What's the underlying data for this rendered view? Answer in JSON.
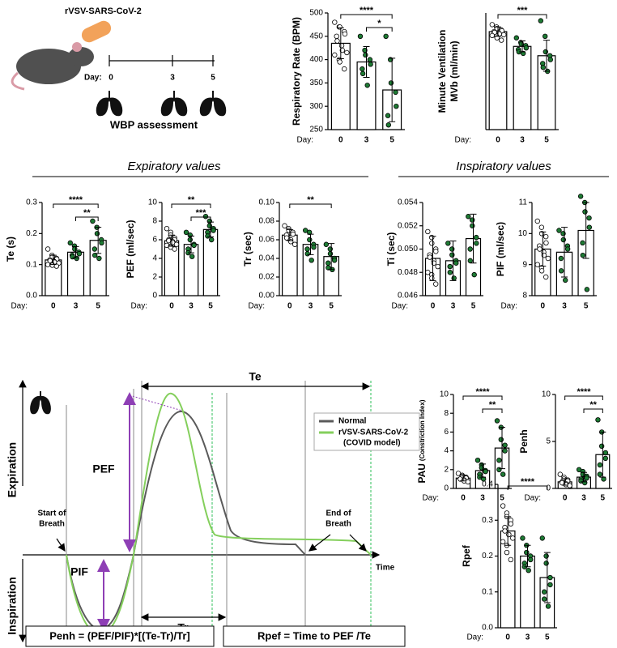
{
  "schematic": {
    "title": "rVSV-SARS-CoV-2",
    "day_label": "Day:",
    "days": [
      "0",
      "3",
      "5"
    ],
    "caption": "WBP assessment"
  },
  "sections": {
    "expiratory": "Expiratory values",
    "inspiratory": "Inspiratory values"
  },
  "waveform": {
    "te": "Te",
    "pef": "PEF",
    "pif": "PIF",
    "tr": "Tr",
    "expiration": "Expiration",
    "inspiration": "Inspiration",
    "start": [
      "Start of",
      "Breath"
    ],
    "end": [
      "End of",
      "Breath"
    ],
    "time": "Time",
    "legend": [
      {
        "name": "Normal",
        "color": "#5a5a5a"
      },
      {
        "name": "rVSV-SARS-CoV-2",
        "note": "(COVID model)",
        "color": "#84cf5c"
      }
    ],
    "formulas": [
      "Penh = (PEF/PIF)*[(Te-Tr)/Tr]",
      "Rpef = Time to PEF /Te"
    ]
  },
  "chart_data": [
    {
      "type": "bar",
      "ylabel": [
        "Respiratory Rate (BPM)"
      ],
      "xlabel": "Day:",
      "categories": [
        "0",
        "3",
        "5"
      ],
      "values": [
        435,
        395,
        335
      ],
      "errors": [
        33,
        33,
        68
      ],
      "point_colors": [
        "#ffffff",
        "#1e7b34",
        "#1e7b34"
      ],
      "points": [
        [
          480,
          470,
          470,
          460,
          455,
          450,
          440,
          430,
          420,
          415,
          410,
          400,
          395,
          380
        ],
        [
          450,
          420,
          410,
          400,
          390,
          380,
          370,
          345
        ],
        [
          450,
          400,
          350,
          330,
          300,
          280,
          260
        ]
      ],
      "ylim": [
        250,
        500
      ],
      "yticks": [
        250,
        300,
        350,
        400,
        450,
        500
      ],
      "brackets": [
        {
          "between": [
            "0",
            "5"
          ],
          "label": "****"
        },
        {
          "between": [
            "3",
            "5"
          ],
          "label": "*"
        }
      ]
    },
    {
      "type": "bar",
      "ylabel": [
        "Minute Ventilation",
        "MVb (ml/min)"
      ],
      "xlabel": "Day:",
      "categories": [
        "0",
        "3",
        "5"
      ],
      "values": [
        126,
        107,
        95
      ],
      "errors": [
        6,
        7,
        20
      ],
      "point_colors": [
        "#ffffff",
        "#1e7b34",
        "#1e7b34"
      ],
      "points": [
        [
          135,
          132,
          130,
          128,
          127,
          126,
          125,
          124,
          123,
          122,
          121,
          120,
          118,
          115
        ],
        [
          118,
          112,
          110,
          108,
          105,
          103,
          100,
          98
        ],
        [
          140,
          120,
          100,
          95,
          90,
          85,
          80,
          75
        ]
      ],
      "ylim": [
        0,
        150
      ],
      "brackets": [
        {
          "between": [
            "0",
            "5"
          ],
          "label": "***"
        }
      ]
    },
    {
      "type": "bar",
      "ylabel": [
        "Te (s)"
      ],
      "xlabel": "Day:",
      "categories": [
        "0",
        "3",
        "5"
      ],
      "values": [
        0.115,
        0.14,
        0.178
      ],
      "errors": [
        0.015,
        0.018,
        0.042
      ],
      "point_colors": [
        "#ffffff",
        "#1e7b34",
        "#1e7b34"
      ],
      "points": [
        [
          0.15,
          0.13,
          0.125,
          0.12,
          0.118,
          0.115,
          0.112,
          0.11,
          0.108,
          0.105,
          0.1,
          0.1,
          0.098,
          0.095
        ],
        [
          0.17,
          0.16,
          0.15,
          0.14,
          0.135,
          0.13,
          0.125,
          0.12
        ],
        [
          0.24,
          0.22,
          0.2,
          0.18,
          0.17,
          0.15,
          0.13,
          0.12
        ]
      ],
      "ylim": [
        0,
        0.3
      ],
      "yticks": [
        {
          "value": 0,
          "label": "0.0"
        },
        0.1,
        0.2,
        0.3
      ],
      "brackets": [
        {
          "between": [
            "0",
            "5"
          ],
          "label": "****"
        },
        {
          "between": [
            "3",
            "5"
          ],
          "label": "**"
        }
      ]
    },
    {
      "type": "bar",
      "ylabel": [
        "PEF (ml/sec)"
      ],
      "xlabel": "Day:",
      "categories": [
        "0",
        "3",
        "5"
      ],
      "values": [
        5.9,
        5.5,
        7.1
      ],
      "errors": [
        0.6,
        0.9,
        0.8
      ],
      "point_colors": [
        "#ffffff",
        "#1e7b34",
        "#1e7b34"
      ],
      "points": [
        [
          7.2,
          6.8,
          6.5,
          6.2,
          6.0,
          6.0,
          5.9,
          5.8,
          5.7,
          5.5,
          5.4,
          5.3,
          5.2,
          5.0
        ],
        [
          6.8,
          6.5,
          6.0,
          5.5,
          5.4,
          5.0,
          4.6,
          4.2
        ],
        [
          8.5,
          8.0,
          7.5,
          7.2,
          7.0,
          6.8,
          6.4,
          6.0
        ]
      ],
      "ylim": [
        0,
        10
      ],
      "yticks": [
        0,
        2,
        4,
        6,
        8,
        10
      ],
      "brackets": [
        {
          "between": [
            "0",
            "5"
          ],
          "label": "**"
        },
        {
          "between": [
            "3",
            "5"
          ],
          "label": "***"
        }
      ]
    },
    {
      "type": "bar",
      "ylabel": [
        "Tr (sec)"
      ],
      "xlabel": "Day:",
      "categories": [
        "0",
        "3",
        "5"
      ],
      "values": [
        0.065,
        0.055,
        0.042
      ],
      "errors": [
        0.006,
        0.011,
        0.014
      ],
      "point_colors": [
        "#ffffff",
        "#1e7b34",
        "#1e7b34"
      ],
      "points": [
        [
          0.075,
          0.072,
          0.07,
          0.068,
          0.066,
          0.065,
          0.062,
          0.06,
          0.058,
          0.055
        ],
        [
          0.07,
          0.068,
          0.06,
          0.055,
          0.052,
          0.05,
          0.045,
          0.038
        ],
        [
          0.055,
          0.05,
          0.045,
          0.04,
          0.038,
          0.035,
          0.03,
          0.028
        ]
      ],
      "ylim": [
        0,
        0.1
      ],
      "yticks": [
        {
          "value": 0,
          "label": "0.00"
        },
        0.02,
        0.04,
        0.06,
        0.08,
        {
          "value": 0.1,
          "label": "0.10"
        }
      ],
      "brackets": [
        {
          "between": [
            "0",
            "5"
          ],
          "label": "**"
        }
      ]
    },
    {
      "type": "bar",
      "ylabel": [
        "Ti (sec)"
      ],
      "xlabel": "Day:",
      "categories": [
        "0",
        "3",
        "5"
      ],
      "values": [
        0.0492,
        0.049,
        0.0509
      ],
      "errors": [
        0.0019,
        0.0017,
        0.0021
      ],
      "point_colors": [
        "#ffffff",
        "#1e7b34",
        "#1e7b34"
      ],
      "points": [
        [
          0.0515,
          0.051,
          0.0505,
          0.05,
          0.0498,
          0.0495,
          0.0493,
          0.049,
          0.0488,
          0.0485,
          0.048,
          0.0478,
          0.0475,
          0.047
        ],
        [
          0.0505,
          0.05,
          0.0495,
          0.049,
          0.0488,
          0.0485,
          0.048,
          0.0475
        ],
        [
          0.0528,
          0.0525,
          0.052,
          0.051,
          0.0505,
          0.05,
          0.049,
          0.0478
        ]
      ],
      "ylim": [
        0.046,
        0.054
      ],
      "yticks": [
        0.046,
        0.048,
        {
          "value": 0.05,
          "label": "0.050"
        },
        0.052,
        0.054
      ],
      "brackets": []
    },
    {
      "type": "bar",
      "ylabel": [
        "PIF (ml/sec)"
      ],
      "xlabel": "Day:",
      "categories": [
        "0",
        "3",
        "5"
      ],
      "values": [
        9.5,
        9.4,
        10.1
      ],
      "errors": [
        0.55,
        0.8,
        0.9
      ],
      "point_colors": [
        "#ffffff",
        "#1e7b34",
        "#1e7b34"
      ],
      "points": [
        [
          10.4,
          10.2,
          10.0,
          9.9,
          9.7,
          9.6,
          9.5,
          9.4,
          9.3,
          9.2,
          9.0,
          8.9,
          8.8,
          8.6
        ],
        [
          10.1,
          10.0,
          9.8,
          9.6,
          9.5,
          9.2,
          8.8,
          8.5
        ],
        [
          11.2,
          11.0,
          10.7,
          10.5,
          10.2,
          9.7,
          9.3,
          8.2
        ]
      ],
      "ylim": [
        8,
        11
      ],
      "yticks": [
        8,
        9,
        10,
        11
      ],
      "brackets": []
    },
    {
      "type": "bar",
      "ylabel": [
        "PAU"
      ],
      "ylabel_note": "(Constriction Index)",
      "xlabel": "Day:",
      "categories": [
        "0",
        "3",
        "5"
      ],
      "values": [
        1.1,
        1.9,
        4.3
      ],
      "errors": [
        0.3,
        0.7,
        2.2
      ],
      "point_colors": [
        "#ffffff",
        "#1e7b34",
        "#1e7b34"
      ],
      "points": [
        [
          1.6,
          1.4,
          1.3,
          1.2,
          1.1,
          1.0,
          1.0,
          0.9,
          0.8,
          0.7
        ],
        [
          3.0,
          2.5,
          2.2,
          1.9,
          1.8,
          1.5,
          1.2,
          1.0
        ],
        [
          7.2,
          6.5,
          5.2,
          4.6,
          4.0,
          3.0,
          2.0,
          1.5
        ]
      ],
      "ylim": [
        0,
        10
      ],
      "yticks": [
        0,
        2,
        4,
        6,
        8,
        10
      ],
      "brackets": [
        {
          "between": [
            "0",
            "5"
          ],
          "label": "****"
        },
        {
          "between": [
            "3",
            "5"
          ],
          "label": "**"
        }
      ]
    },
    {
      "type": "bar",
      "ylabel": [
        "Penh"
      ],
      "xlabel": "Day:",
      "categories": [
        "0",
        "3",
        "5"
      ],
      "values": [
        0.7,
        1.2,
        3.6
      ],
      "errors": [
        0.35,
        0.5,
        2.4
      ],
      "point_colors": [
        "#ffffff",
        "#1e7b34",
        "#1e7b34"
      ],
      "points": [
        [
          1.5,
          1.2,
          1.0,
          0.9,
          0.8,
          0.7,
          0.6,
          0.5,
          0.4,
          0.3
        ],
        [
          2.0,
          1.8,
          1.5,
          1.3,
          1.1,
          1.0,
          0.8,
          0.6
        ],
        [
          7.3,
          6.0,
          4.5,
          3.8,
          3.2,
          2.5,
          1.5,
          1.0
        ]
      ],
      "ylim": [
        0,
        10
      ],
      "yticks": [
        0,
        5,
        10
      ],
      "brackets": [
        {
          "between": [
            "0",
            "5"
          ],
          "label": "****"
        },
        {
          "between": [
            "3",
            "5"
          ],
          "label": "**"
        }
      ]
    },
    {
      "type": "bar",
      "ylabel": [
        "Rpef"
      ],
      "xlabel": "Day:",
      "categories": [
        "0",
        "3",
        "5"
      ],
      "values": [
        0.27,
        0.2,
        0.14
      ],
      "errors": [
        0.04,
        0.03,
        0.07
      ],
      "point_colors": [
        "#ffffff",
        "#1e7b34",
        "#1e7b34"
      ],
      "points": [
        [
          0.34,
          0.32,
          0.31,
          0.3,
          0.29,
          0.28,
          0.27,
          0.26,
          0.26,
          0.25,
          0.24,
          0.23,
          0.21,
          0.19
        ],
        [
          0.25,
          0.23,
          0.21,
          0.2,
          0.19,
          0.18,
          0.17,
          0.16
        ],
        [
          0.25,
          0.2,
          0.18,
          0.14,
          0.12,
          0.1,
          0.08,
          0.06
        ]
      ],
      "ylim": [
        0,
        0.4
      ],
      "yticks": [
        {
          "value": 0,
          "label": "0.0"
        },
        0.1,
        0.2,
        0.3,
        0.4
      ],
      "brackets": [
        {
          "between": [
            "0",
            "5"
          ],
          "label": "****"
        }
      ]
    }
  ]
}
